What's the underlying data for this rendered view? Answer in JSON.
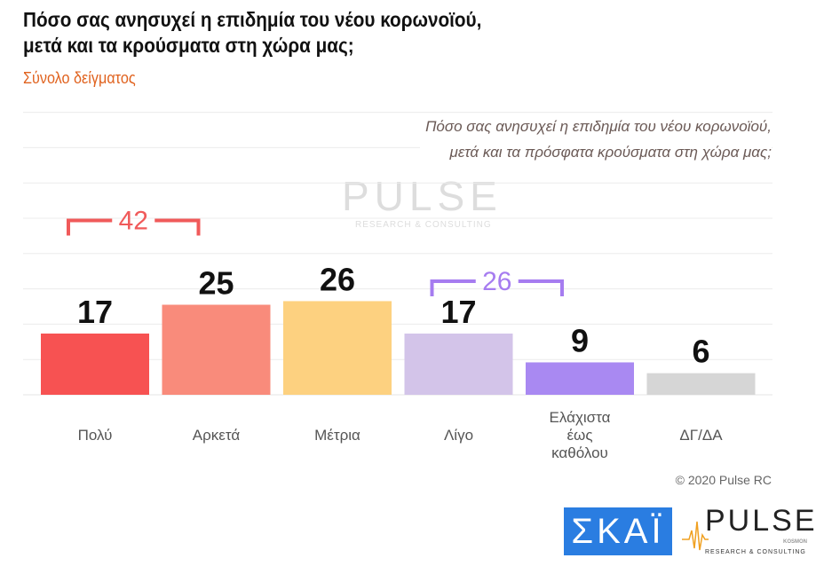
{
  "title_line1": "Πόσο σας ανησυχεί η επιδημία του νέου κορωνοϊού,",
  "title_line2": "μετά και τα κρούσματα στη χώρα μας;",
  "subtitle": "Σύνολο δείγματος",
  "question_line1": "Πόσο σας ανησυχεί η επιδημία του νέου κορωνοϊού,",
  "question_line2": "μετά και τα πρόσφατα κρούσματα στη χώρα μας;",
  "copyright": "© 2020 Pulse RC",
  "logos": {
    "skai": "ΣΚΑΪ",
    "pulse": "PULSE",
    "pulse_sub": "RESEARCH & CONSULTING",
    "pulse_kosmon": "KOSMON"
  },
  "watermark": {
    "main": "PULSE",
    "sub": "RESEARCH & CONSULTING"
  },
  "chart_data": {
    "type": "bar",
    "categories": [
      [
        "Πολύ"
      ],
      [
        "Αρκετά"
      ],
      [
        "Μέτρια"
      ],
      [
        "Λίγο"
      ],
      [
        "Ελάχιστα",
        "έως",
        "καθόλου"
      ],
      [
        "ΔΓ/ΔΑ"
      ]
    ],
    "values": [
      17,
      25,
      26,
      17,
      9,
      6
    ],
    "colors": [
      "#f75252",
      "#f98b7b",
      "#fdd180",
      "#d3c4e9",
      "#a989f2",
      "#d6d6d6"
    ],
    "ylim": [
      0,
      32
    ],
    "grid": true,
    "brackets": [
      {
        "label": "42",
        "from": 0,
        "to": 1,
        "color": "#f05a5a"
      },
      {
        "label": "26",
        "from": 3,
        "to": 4,
        "color": "#a67cf0"
      }
    ]
  }
}
